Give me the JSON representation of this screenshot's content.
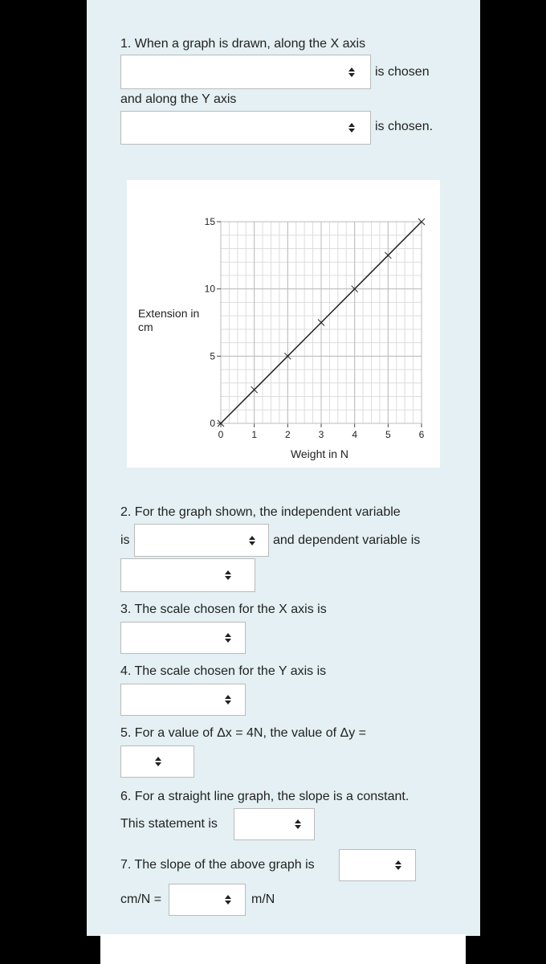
{
  "q1": {
    "text": "1. When a graph is drawn, along the X axis",
    "after_x": "is chosen",
    "y_intro": "and along the Y axis",
    "after_y": "is chosen."
  },
  "chart_data": {
    "type": "line",
    "x": [
      0,
      1,
      2,
      3,
      4,
      5,
      6
    ],
    "series": [
      {
        "color": "#222222",
        "values": [
          0,
          2.5,
          5,
          7.5,
          10,
          12.5,
          15
        ]
      }
    ],
    "xlim": [
      0,
      6
    ],
    "ylim": [
      0,
      15
    ],
    "xticks": [
      0,
      1,
      2,
      3,
      4,
      5,
      6
    ],
    "yticks": [
      0,
      5,
      10,
      15
    ],
    "xlabel": "Weight in N",
    "ylabel": "Extension in cm",
    "grid": true
  },
  "q2": {
    "text": "2. For the graph shown, the independent variable",
    "is": "is",
    "dependent": "and dependent variable is"
  },
  "q3": {
    "text": "3. The scale chosen for the X axis is"
  },
  "q4": {
    "text": "4. The scale chosen for the Y axis is"
  },
  "q5": {
    "text": "5. For a value of Δx = 4N, the value of Δy ="
  },
  "q6": {
    "text": "6. For a straight line graph, the slope is a constant.",
    "statement": "This statement is"
  },
  "q7": {
    "text": "7. The slope of the above graph is",
    "unit_before": "cm/N =",
    "unit_after": "m/N"
  }
}
